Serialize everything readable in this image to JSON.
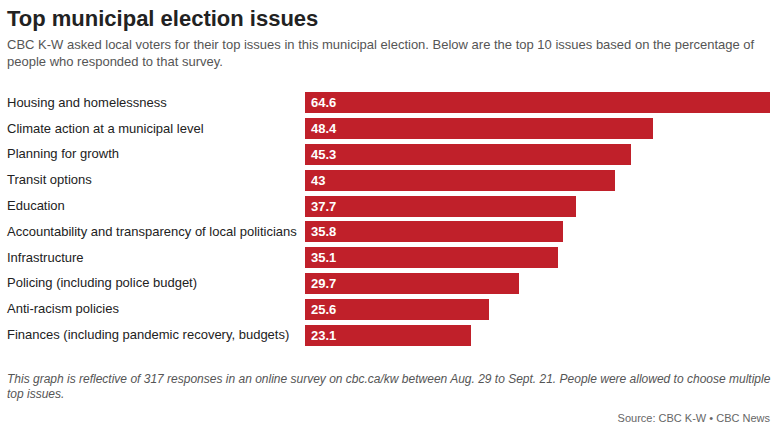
{
  "chart_data": {
    "type": "bar",
    "orientation": "horizontal",
    "title": "Top municipal election issues",
    "subtitle": "CBC K-W asked local voters for their top issues in this municipal election. Below are the top 10 issues based on the percentage of people who responded to that survey.",
    "categories": [
      "Housing and homelessness",
      "Climate action at a municipal level",
      "Planning for growth",
      "Transit options",
      "Education",
      "Accountability and transparency of local politicians",
      "Infrastructure",
      "Policing (including police budget)",
      "Anti-racism policies",
      "Finances (including pandemic recovery, budgets)"
    ],
    "values": [
      64.6,
      48.4,
      45.3,
      43,
      37.7,
      35.8,
      35.1,
      29.7,
      25.6,
      23.1
    ],
    "color": "#c0202a",
    "data_labels": true,
    "tick_labels": "y",
    "grid": false,
    "footnote": "This graph is reflective of 317 responses in an online survey on cbc.ca/kw between Aug. 29 to Sept. 21. People were allowed to choose multiple top issues.",
    "source": "Source: CBC K-W • CBC News"
  }
}
